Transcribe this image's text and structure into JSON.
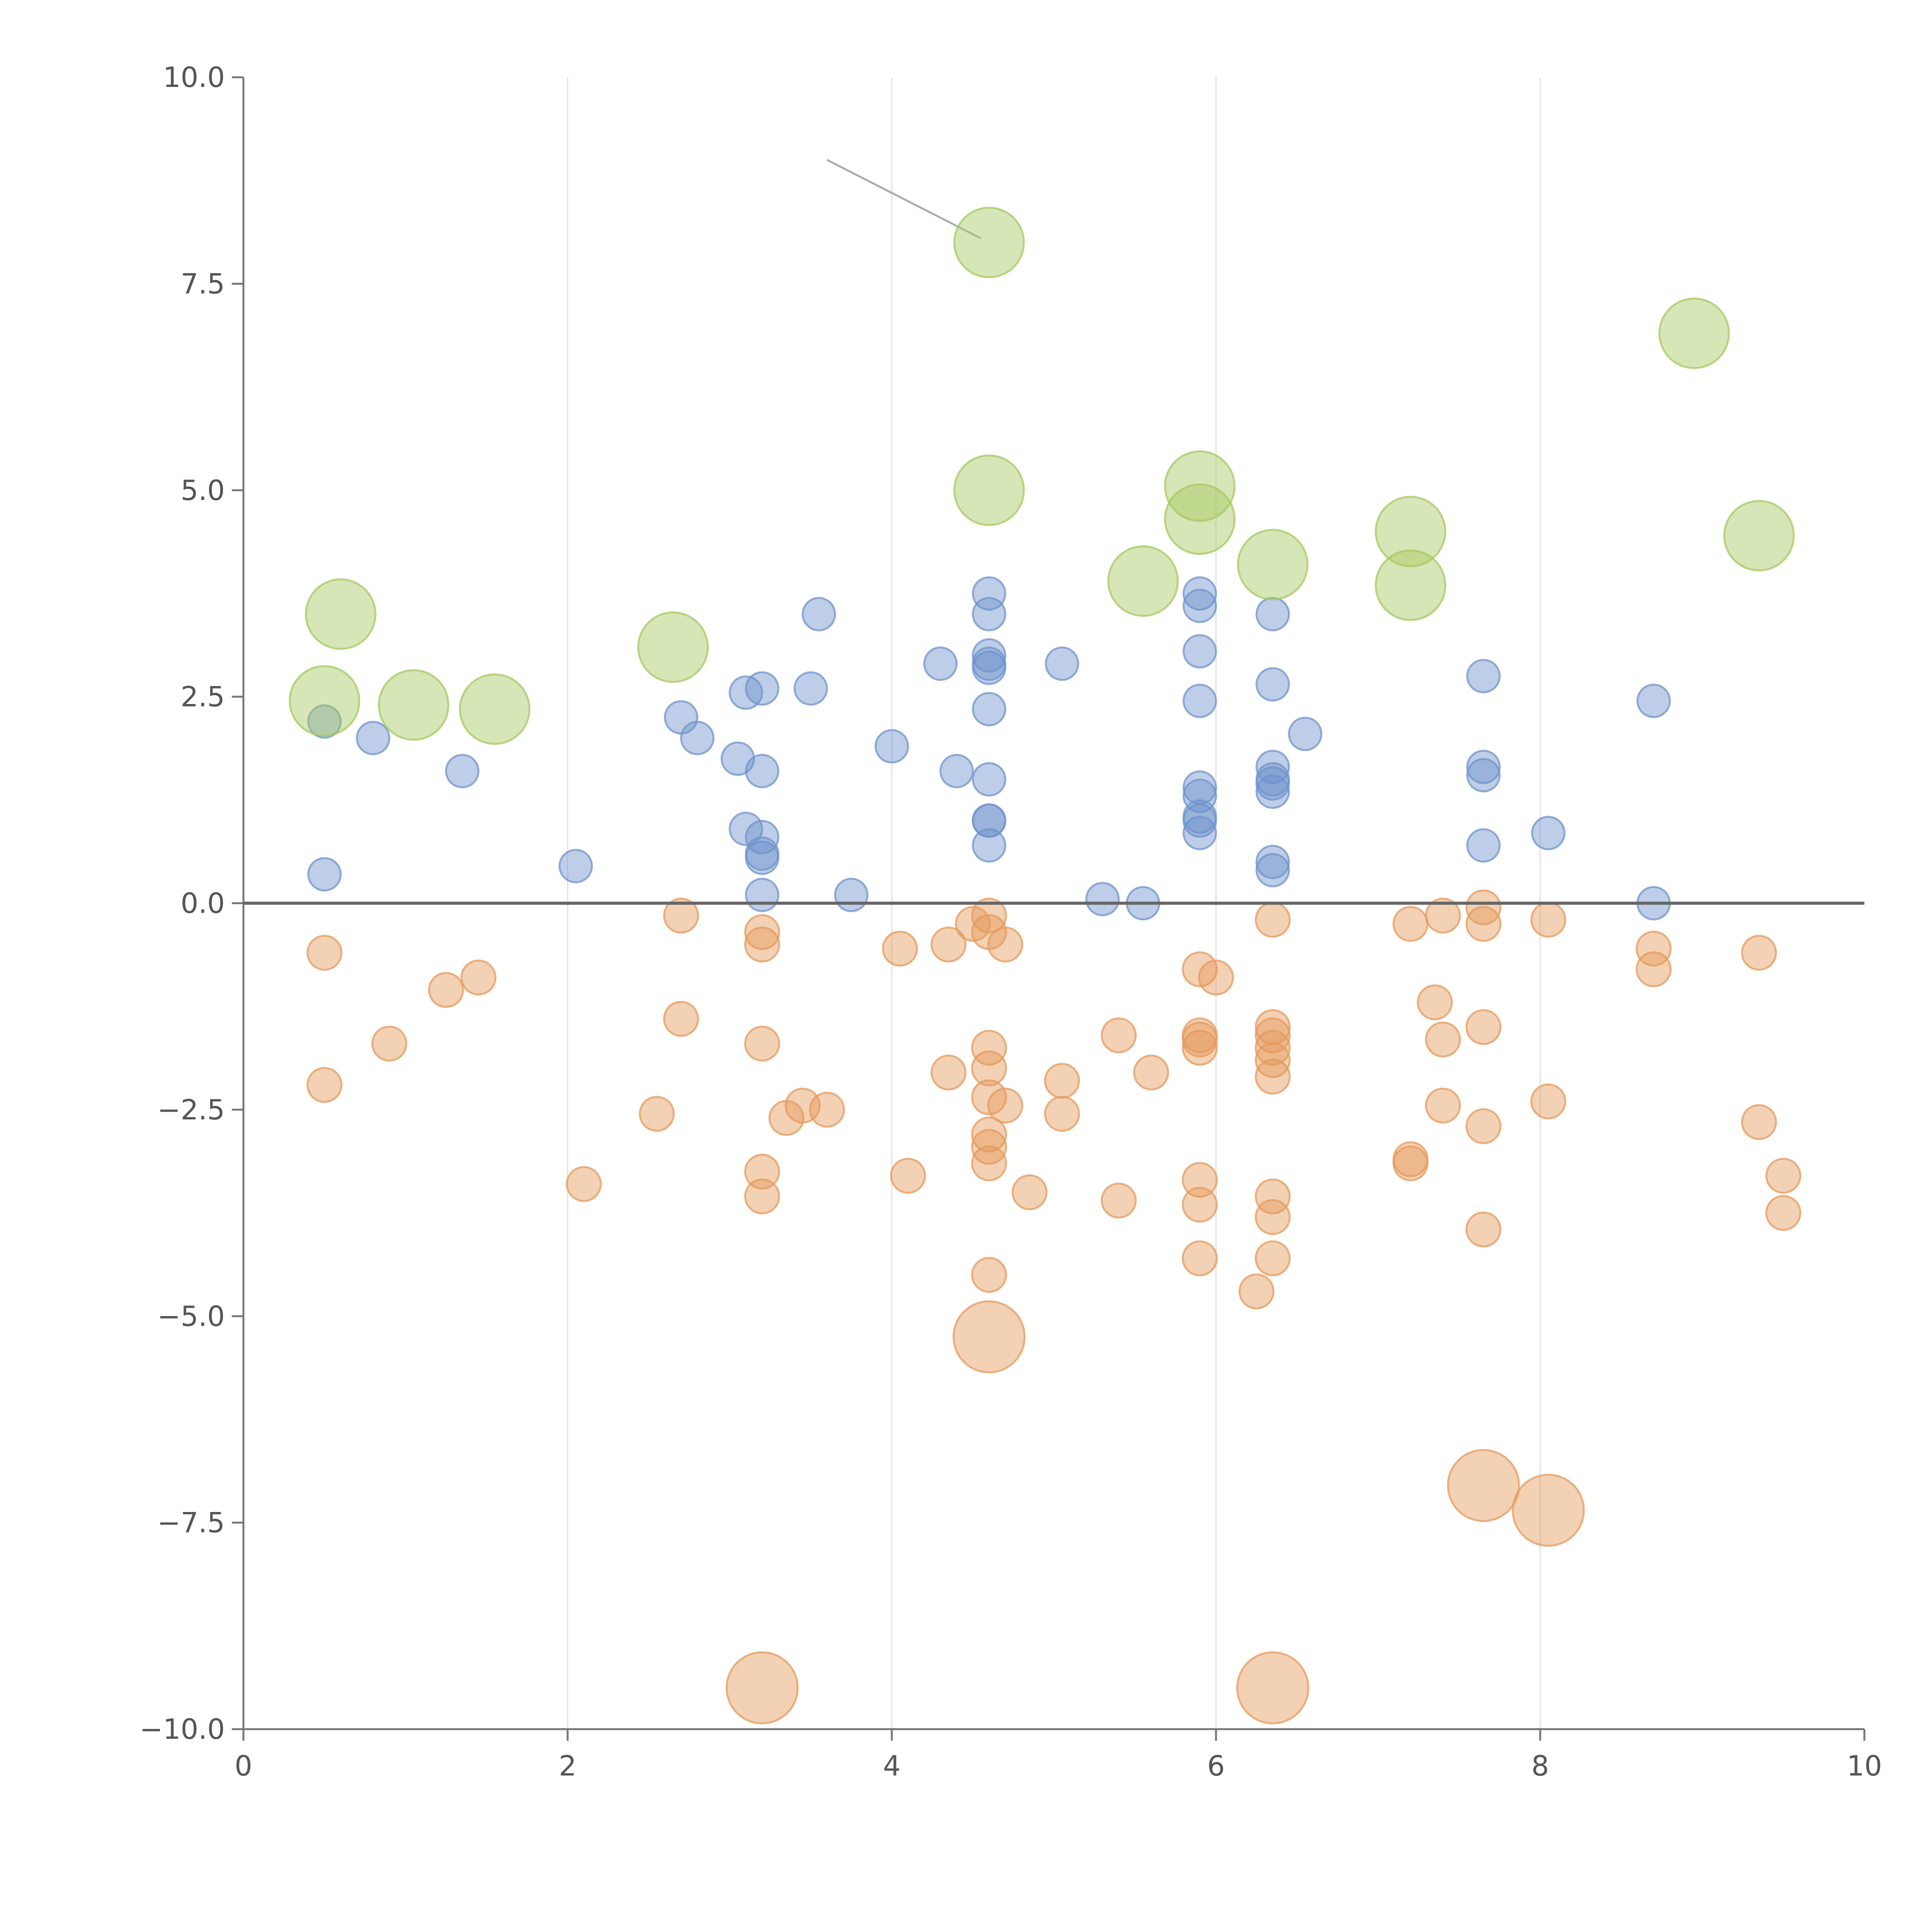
{
  "chart_data": {
    "type": "scatter",
    "title": "",
    "xlabel": "",
    "ylabel": "",
    "xlim": [
      0,
      10
    ],
    "ylim": [
      -10,
      10
    ],
    "x_ticks": [
      0,
      2,
      4,
      6,
      8,
      10
    ],
    "x_tick_labels": [
      "0",
      "2",
      "4",
      "6",
      "8",
      "10"
    ],
    "y_ticks": [
      -10,
      -7.5,
      -5,
      -2.5,
      0,
      2.5,
      5,
      7.5,
      10
    ],
    "y_tick_labels": [
      "−10.0",
      "−7.5",
      "−5.0",
      "−2.5",
      "0.0",
      "2.5",
      "5.0",
      "7.5",
      "10.0"
    ],
    "vertical_gridlines_at": [
      2,
      4,
      6,
      8
    ],
    "zero_line": 0,
    "colors": {
      "blue": "#6f93cc",
      "orange": "#e59a5c",
      "green": "#a6c85f",
      "axis": "#777777",
      "grid": "#e0e0e0",
      "zero_line": "#666666",
      "leader_line": "#aaaaaa"
    },
    "annotation_line": {
      "from": [
        3.6,
        9.0
      ],
      "to": [
        4.55,
        8.05
      ]
    },
    "series": [
      {
        "name": "blue",
        "color_key": "blue",
        "points": [
          [
            0.5,
            2.2
          ],
          [
            0.5,
            0.35
          ],
          [
            0.8,
            2.0
          ],
          [
            1.35,
            1.6
          ],
          [
            2.05,
            0.45
          ],
          [
            2.7,
            2.25
          ],
          [
            2.8,
            2.0
          ],
          [
            3.1,
            2.55
          ],
          [
            3.2,
            2.6
          ],
          [
            3.05,
            1.75
          ],
          [
            3.2,
            1.6
          ],
          [
            3.1,
            0.9
          ],
          [
            3.2,
            0.8
          ],
          [
            3.2,
            0.6
          ],
          [
            3.2,
            0.55
          ],
          [
            3.2,
            0.1
          ],
          [
            3.55,
            3.5
          ],
          [
            3.5,
            2.6
          ],
          [
            3.75,
            0.1
          ],
          [
            4.0,
            1.9
          ],
          [
            4.3,
            2.9
          ],
          [
            4.4,
            1.6
          ],
          [
            4.6,
            3.75
          ],
          [
            4.6,
            3.5
          ],
          [
            4.6,
            3.0
          ],
          [
            4.6,
            2.9
          ],
          [
            4.6,
            2.85
          ],
          [
            4.6,
            2.35
          ],
          [
            4.6,
            1.5
          ],
          [
            4.6,
            1.0
          ],
          [
            4.6,
            1.0
          ],
          [
            4.6,
            0.7
          ],
          [
            5.05,
            2.9
          ],
          [
            5.3,
            0.05
          ],
          [
            5.55,
            0.0
          ],
          [
            5.9,
            3.75
          ],
          [
            5.9,
            3.6
          ],
          [
            5.9,
            3.05
          ],
          [
            5.9,
            2.45
          ],
          [
            5.9,
            1.4
          ],
          [
            5.9,
            1.3
          ],
          [
            5.9,
            1.05
          ],
          [
            5.9,
            1.0
          ],
          [
            5.9,
            0.85
          ],
          [
            6.35,
            3.5
          ],
          [
            6.35,
            2.65
          ],
          [
            6.55,
            2.05
          ],
          [
            6.35,
            1.65
          ],
          [
            6.35,
            1.5
          ],
          [
            6.35,
            1.45
          ],
          [
            6.35,
            1.35
          ],
          [
            6.35,
            0.5
          ],
          [
            6.35,
            0.4
          ],
          [
            7.65,
            2.75
          ],
          [
            7.65,
            1.65
          ],
          [
            7.65,
            1.55
          ],
          [
            7.65,
            0.7
          ],
          [
            8.05,
            0.85
          ],
          [
            8.7,
            2.45
          ],
          [
            8.7,
            0.0
          ]
        ]
      },
      {
        "name": "orange",
        "color_key": "orange",
        "points": [
          [
            0.5,
            -0.6
          ],
          [
            0.5,
            -2.2
          ],
          [
            0.9,
            -1.7
          ],
          [
            1.25,
            -1.05
          ],
          [
            1.45,
            -0.9
          ],
          [
            2.1,
            -3.4
          ],
          [
            2.55,
            -2.55
          ],
          [
            2.7,
            -0.15
          ],
          [
            2.7,
            -1.4
          ],
          [
            3.2,
            -0.35
          ],
          [
            3.2,
            -0.5
          ],
          [
            3.2,
            -1.7
          ],
          [
            3.35,
            -2.6
          ],
          [
            3.45,
            -2.45
          ],
          [
            3.6,
            -2.5
          ],
          [
            3.2,
            -3.25
          ],
          [
            3.2,
            -3.55
          ],
          [
            4.05,
            -0.55
          ],
          [
            4.1,
            -3.3
          ],
          [
            4.35,
            -0.5
          ],
          [
            4.35,
            -2.05
          ],
          [
            4.5,
            -0.25
          ],
          [
            4.6,
            -0.15
          ],
          [
            4.6,
            -0.35
          ],
          [
            4.7,
            -0.5
          ],
          [
            4.6,
            -1.75
          ],
          [
            4.6,
            -2.0
          ],
          [
            4.6,
            -2.35
          ],
          [
            4.7,
            -2.45
          ],
          [
            4.6,
            -2.8
          ],
          [
            4.6,
            -2.95
          ],
          [
            4.6,
            -3.15
          ],
          [
            4.85,
            -3.5
          ],
          [
            4.6,
            -4.5
          ],
          [
            5.05,
            -2.15
          ],
          [
            5.05,
            -2.55
          ],
          [
            5.4,
            -1.6
          ],
          [
            5.4,
            -3.6
          ],
          [
            5.6,
            -2.05
          ],
          [
            5.9,
            -0.8
          ],
          [
            6.0,
            -0.9
          ],
          [
            5.9,
            -1.6
          ],
          [
            5.9,
            -1.65
          ],
          [
            5.9,
            -1.75
          ],
          [
            5.9,
            -3.35
          ],
          [
            5.9,
            -3.65
          ],
          [
            5.9,
            -4.3
          ],
          [
            6.25,
            -4.7
          ],
          [
            6.35,
            -0.2
          ],
          [
            6.35,
            -1.5
          ],
          [
            6.35,
            -1.6
          ],
          [
            6.35,
            -1.75
          ],
          [
            6.35,
            -1.9
          ],
          [
            6.35,
            -2.1
          ],
          [
            6.35,
            -3.55
          ],
          [
            6.35,
            -3.8
          ],
          [
            6.35,
            -4.3
          ],
          [
            7.2,
            -0.25
          ],
          [
            7.4,
            -0.15
          ],
          [
            7.35,
            -1.2
          ],
          [
            7.4,
            -1.65
          ],
          [
            7.4,
            -2.45
          ],
          [
            7.2,
            -3.1
          ],
          [
            7.2,
            -3.15
          ],
          [
            7.65,
            -0.05
          ],
          [
            7.65,
            -0.25
          ],
          [
            7.65,
            -1.5
          ],
          [
            7.65,
            -2.7
          ],
          [
            7.65,
            -3.95
          ],
          [
            8.05,
            -0.2
          ],
          [
            8.05,
            -2.4
          ],
          [
            8.7,
            -0.55
          ],
          [
            8.7,
            -0.8
          ],
          [
            9.35,
            -0.6
          ],
          [
            9.35,
            -2.65
          ],
          [
            9.5,
            -3.3
          ],
          [
            9.5,
            -3.75
          ]
        ]
      },
      {
        "name": "green",
        "color_key": "green",
        "points": [
          [
            0.6,
            3.5
          ],
          [
            0.5,
            2.45
          ],
          [
            1.05,
            2.4
          ],
          [
            1.55,
            2.35
          ],
          [
            2.65,
            3.1
          ],
          [
            4.6,
            8.0
          ],
          [
            4.6,
            5.0
          ],
          [
            5.55,
            3.9
          ],
          [
            5.9,
            5.05
          ],
          [
            5.9,
            4.65
          ],
          [
            6.35,
            4.1
          ],
          [
            7.2,
            4.5
          ],
          [
            7.2,
            3.85
          ],
          [
            8.95,
            6.9
          ],
          [
            9.35,
            4.45
          ]
        ]
      },
      {
        "name": "orange-large",
        "color_key": "orange",
        "points": [
          [
            4.6,
            -5.25
          ],
          [
            7.65,
            -7.05
          ],
          [
            8.05,
            -7.35
          ],
          [
            3.2,
            -9.5
          ],
          [
            6.35,
            -9.5
          ]
        ]
      }
    ]
  }
}
